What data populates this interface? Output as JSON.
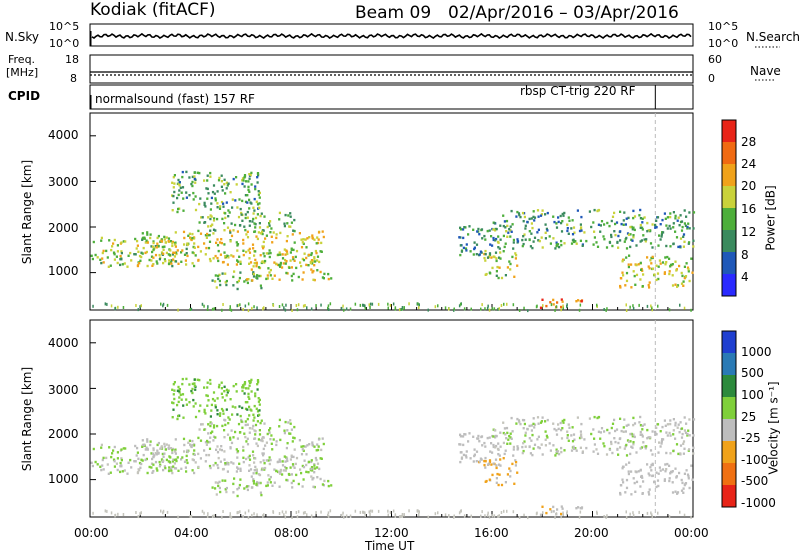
{
  "header": {
    "station": "Kodiak",
    "algorithm": "(fitACF)",
    "beam": "Beam 09",
    "date_range": "02/Apr/2016 – 03/Apr/2016"
  },
  "top_panel": {
    "left_label": "N.Sky",
    "right_label": "N.Search",
    "left_ticks": [
      "10^5",
      "10^0"
    ],
    "right_ticks": [
      "10^5",
      "10^0"
    ]
  },
  "freq_panel": {
    "left_label_1": "Freq.",
    "left_label_2": "[MHz]",
    "right_label": "Nave",
    "left_ticks": [
      "18",
      "8"
    ],
    "right_ticks": [
      "60",
      "0"
    ]
  },
  "cpid_panel": {
    "label": "CPID",
    "mode_1": "normalsound (fast) 157 RF",
    "mode_2": "rbsp CT-trig 220 RF"
  },
  "power_panel": {
    "ylabel": "Slant Range [km]",
    "yticks": [
      "4000",
      "3000",
      "2000",
      "1000"
    ],
    "colorbar_label": "Power [dB]",
    "colorbar_ticks": [
      "28",
      "24",
      "20",
      "16",
      "12",
      "8",
      "4"
    ]
  },
  "velocity_panel": {
    "ylabel": "Slant Range [km]",
    "yticks": [
      "4000",
      "3000",
      "2000",
      "1000"
    ],
    "colorbar_label": "Velocity  [m s⁻¹]",
    "colorbar_ticks": [
      "1000",
      "500",
      "100",
      "25",
      "-25",
      "-100",
      "-500",
      "-1000"
    ]
  },
  "xaxis": {
    "ticks": [
      "00:00",
      "04:00",
      "08:00",
      "12:00",
      "16:00",
      "20:00",
      "00:00"
    ],
    "label": "Time UT"
  },
  "colors": {
    "power_scale": [
      "#2a2aff",
      "#1f58b8",
      "#3a8a5e",
      "#4dae3a",
      "#c9d23a",
      "#f0a21a",
      "#f06a12",
      "#e82418"
    ],
    "velocity_scale": [
      "#1f3fd0",
      "#2a7ab5",
      "#2c8a3c",
      "#7fcf3a",
      "#bdbdbd",
      "#f0a21a",
      "#f07012",
      "#e82418"
    ],
    "velocity_dominant_gray": "#c4c4bc"
  },
  "chart_data": {
    "type": "heatmap",
    "x_range_hours": [
      0,
      24
    ],
    "y_range_km": [
      180,
      4500
    ],
    "marker_hour": 22.5,
    "power_range_db": [
      0,
      32
    ],
    "velocity_range": [
      -1200,
      1200
    ],
    "scatter_regions": [
      {
        "hour_start": 0.0,
        "hour_end": 4.2,
        "range_low_km": 1150,
        "range_high_km": 1800,
        "power_db": 16,
        "velocity": 0
      },
      {
        "hour_start": 1.8,
        "hour_end": 9.3,
        "range_low_km": 1200,
        "range_high_km": 1950,
        "power_db": 18,
        "velocity": -20
      },
      {
        "hour_start": 4.2,
        "hour_end": 8.2,
        "range_low_km": 1900,
        "range_high_km": 2350,
        "power_db": 14,
        "velocity": 60
      },
      {
        "hour_start": 4.8,
        "hour_end": 6.8,
        "range_low_km": 650,
        "range_high_km": 1050,
        "power_db": 14,
        "velocity": 0
      },
      {
        "hour_start": 6.2,
        "hour_end": 9.6,
        "range_low_km": 850,
        "range_high_km": 1300,
        "power_db": 18,
        "velocity": 10
      },
      {
        "hour_start": 3.2,
        "hour_end": 6.8,
        "range_low_km": 2300,
        "range_high_km": 3250,
        "power_db": 12,
        "velocity": 200
      },
      {
        "hour_start": 15.4,
        "hour_end": 17.0,
        "range_low_km": 900,
        "range_high_km": 1500,
        "power_db": 16,
        "velocity": -300
      },
      {
        "hour_start": 14.6,
        "hour_end": 16.2,
        "range_low_km": 1400,
        "range_high_km": 2050,
        "power_db": 10,
        "velocity": -150
      },
      {
        "hour_start": 16.0,
        "hour_end": 24.0,
        "range_low_km": 1550,
        "range_high_km": 2400,
        "power_db": 12,
        "velocity": -40
      },
      {
        "hour_start": 21.0,
        "hour_end": 24.0,
        "range_low_km": 700,
        "range_high_km": 1400,
        "power_db": 18,
        "velocity": -150
      },
      {
        "hour_start": 17.8,
        "hour_end": 19.6,
        "range_low_km": 250,
        "range_high_km": 450,
        "power_db": 26,
        "velocity": -250
      }
    ]
  }
}
